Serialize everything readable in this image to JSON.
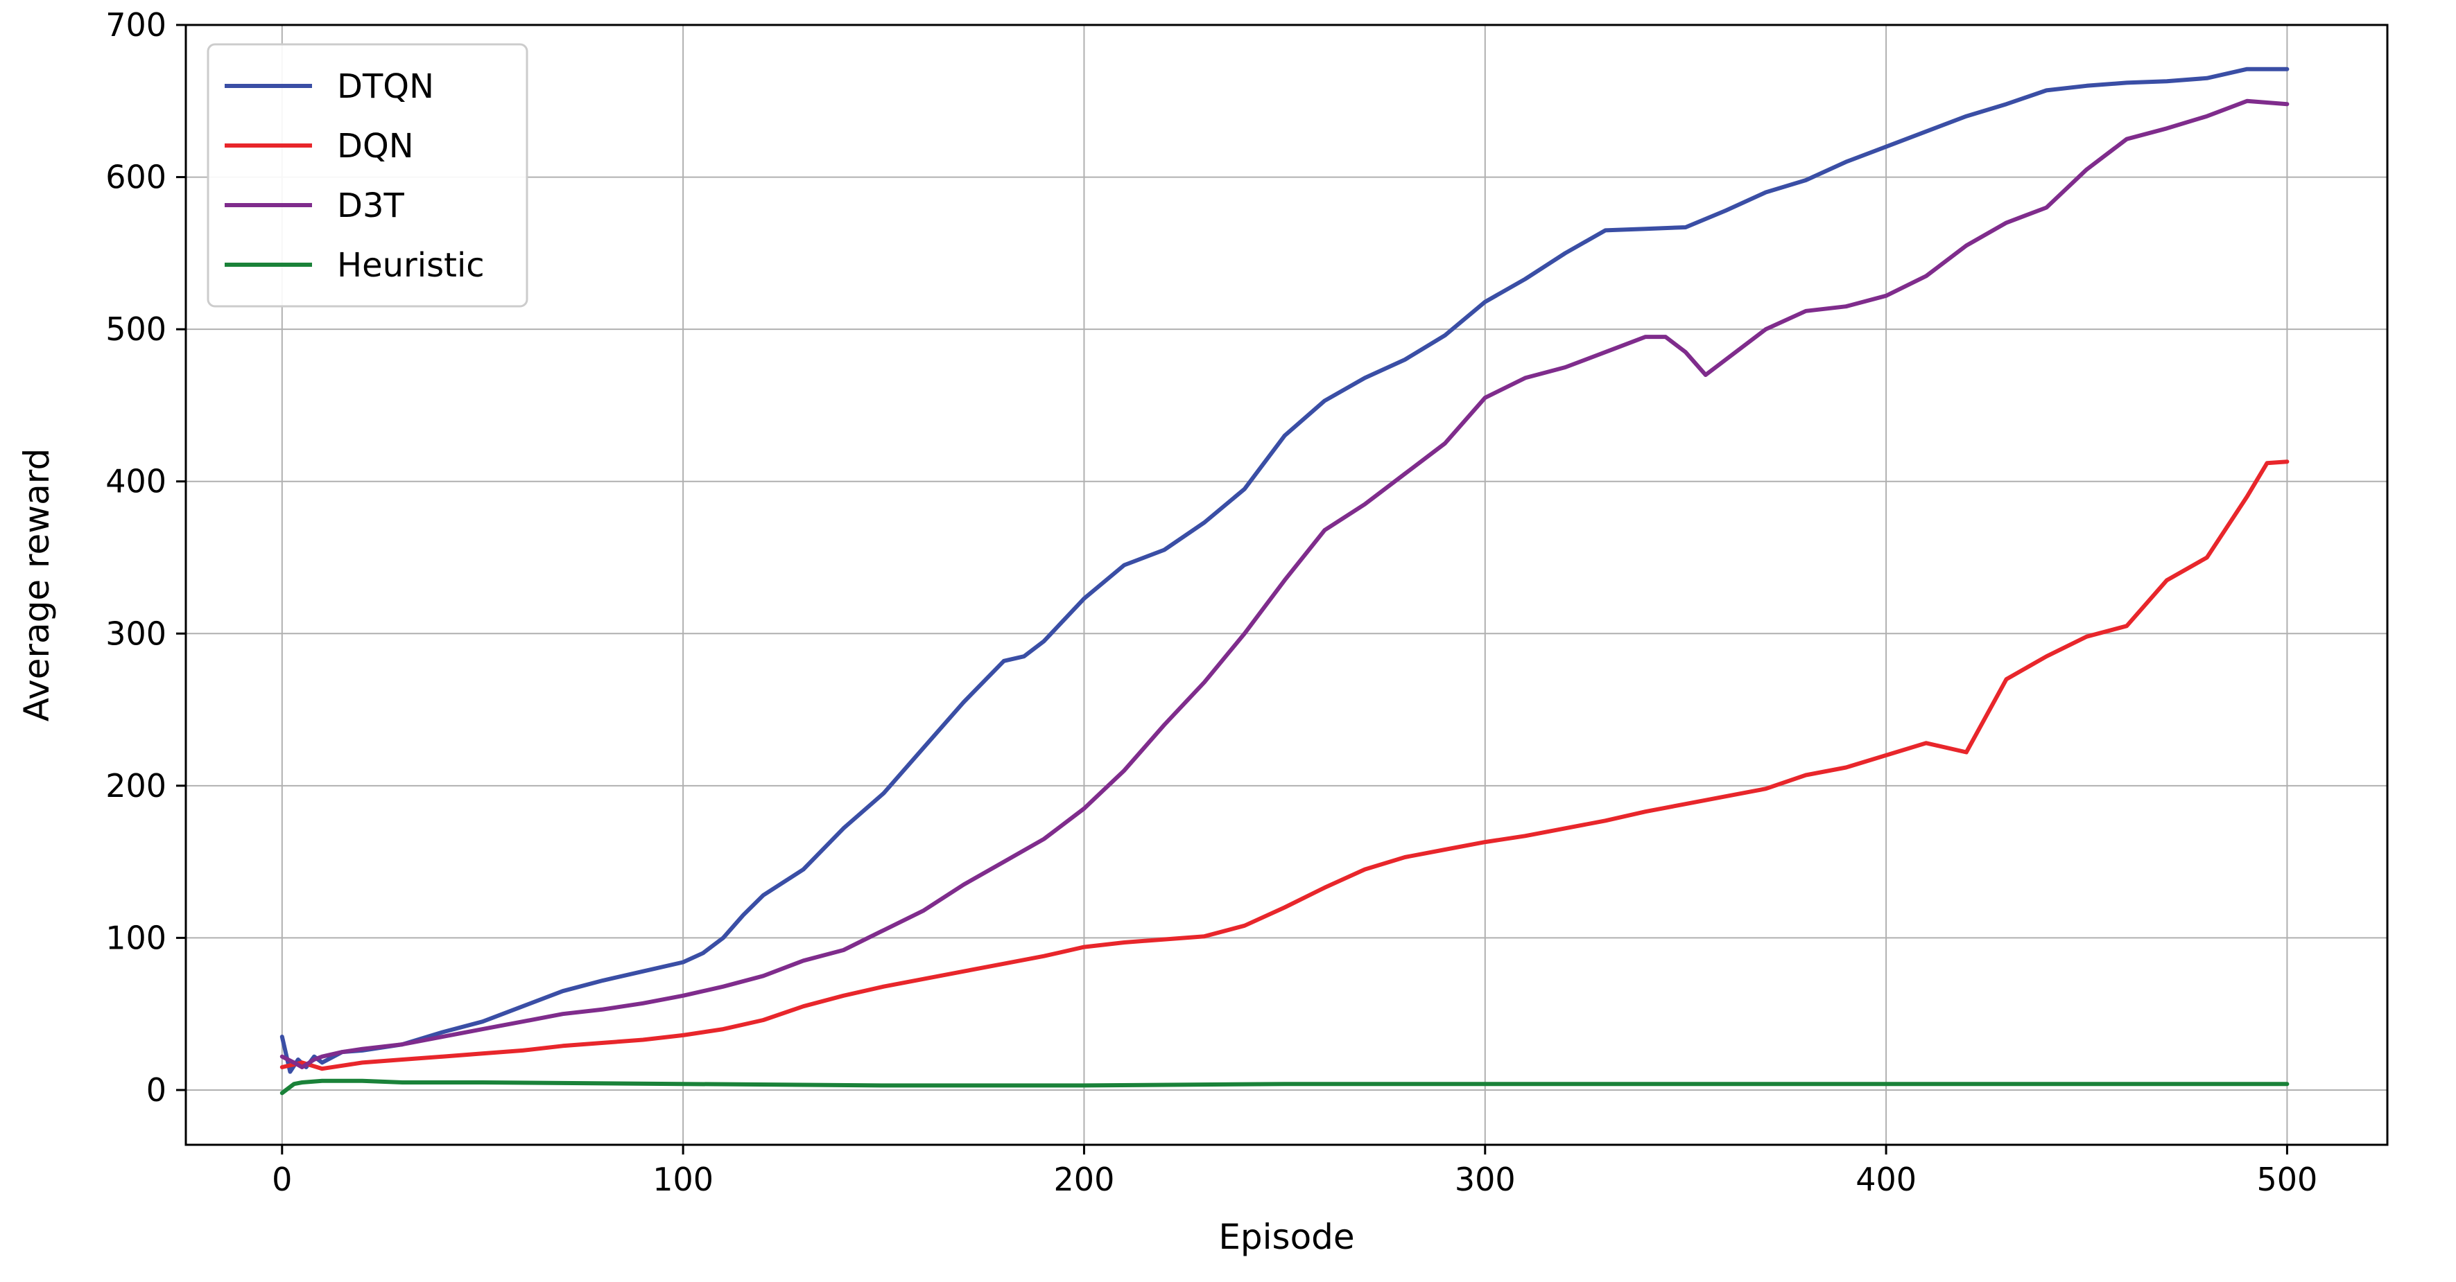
{
  "chart_data": {
    "type": "line",
    "title": "",
    "xlabel": "Episode",
    "ylabel": "Average reward",
    "xlim": [
      -24,
      525
    ],
    "ylim": [
      -36,
      700
    ],
    "xticks": [
      0,
      100,
      200,
      300,
      400,
      500
    ],
    "yticks": [
      0,
      100,
      200,
      300,
      400,
      500,
      600,
      700
    ],
    "xtick_labels": [
      "0",
      "100",
      "200",
      "300",
      "400",
      "500"
    ],
    "ytick_labels": [
      "0",
      "100",
      "200",
      "300",
      "400",
      "500",
      "600",
      "700"
    ],
    "grid": true,
    "legend_position": "top-left",
    "series": [
      {
        "name": "DTQN",
        "color": "#3a4ea5",
        "x": [
          0,
          2,
          4,
          6,
          8,
          10,
          15,
          20,
          25,
          30,
          40,
          50,
          60,
          70,
          80,
          90,
          100,
          105,
          110,
          115,
          120,
          130,
          140,
          150,
          160,
          170,
          180,
          185,
          190,
          200,
          210,
          220,
          230,
          240,
          250,
          260,
          270,
          280,
          290,
          300,
          310,
          320,
          330,
          340,
          350,
          360,
          370,
          380,
          390,
          400,
          410,
          420,
          430,
          440,
          450,
          460,
          470,
          480,
          490,
          500
        ],
        "y": [
          35,
          12,
          20,
          15,
          22,
          18,
          25,
          26,
          28,
          30,
          38,
          45,
          55,
          65,
          72,
          78,
          84,
          90,
          100,
          115,
          128,
          145,
          172,
          195,
          225,
          255,
          282,
          285,
          295,
          323,
          345,
          355,
          373,
          395,
          430,
          453,
          468,
          480,
          496,
          518,
          533,
          550,
          565,
          566,
          567,
          578,
          590,
          598,
          610,
          620,
          630,
          640,
          648,
          657,
          660,
          662,
          663,
          665,
          671,
          671
        ]
      },
      {
        "name": "DQN",
        "color": "#e8262b",
        "x": [
          0,
          5,
          10,
          15,
          20,
          30,
          40,
          50,
          60,
          70,
          80,
          90,
          100,
          110,
          120,
          130,
          140,
          150,
          160,
          170,
          180,
          190,
          200,
          210,
          220,
          230,
          240,
          250,
          260,
          270,
          280,
          290,
          300,
          310,
          320,
          330,
          340,
          350,
          360,
          370,
          380,
          390,
          400,
          410,
          420,
          430,
          440,
          450,
          460,
          470,
          480,
          490,
          495,
          500
        ],
        "y": [
          15,
          18,
          14,
          16,
          18,
          20,
          22,
          24,
          26,
          29,
          31,
          33,
          36,
          40,
          46,
          55,
          62,
          68,
          73,
          78,
          83,
          88,
          94,
          97,
          99,
          101,
          108,
          120,
          133,
          145,
          153,
          158,
          163,
          167,
          172,
          177,
          183,
          188,
          193,
          198,
          207,
          212,
          220,
          228,
          222,
          270,
          285,
          298,
          305,
          335,
          350,
          390,
          412,
          413
        ]
      },
      {
        "name": "D3T",
        "color": "#7f2c8c",
        "x": [
          0,
          3,
          5,
          8,
          10,
          15,
          20,
          30,
          40,
          50,
          60,
          70,
          80,
          90,
          100,
          110,
          120,
          130,
          140,
          150,
          160,
          170,
          180,
          190,
          200,
          210,
          220,
          230,
          240,
          250,
          260,
          270,
          280,
          290,
          300,
          310,
          320,
          330,
          340,
          345,
          350,
          355,
          360,
          370,
          380,
          390,
          400,
          410,
          420,
          430,
          440,
          450,
          460,
          470,
          480,
          490,
          500
        ],
        "y": [
          22,
          18,
          15,
          20,
          22,
          25,
          27,
          30,
          35,
          40,
          45,
          50,
          53,
          57,
          62,
          68,
          75,
          85,
          92,
          105,
          118,
          135,
          150,
          165,
          185,
          210,
          240,
          268,
          300,
          335,
          368,
          385,
          405,
          425,
          455,
          468,
          475,
          485,
          495,
          495,
          485,
          470,
          480,
          500,
          512,
          515,
          522,
          535,
          555,
          570,
          580,
          605,
          625,
          632,
          640,
          650,
          648
        ]
      },
      {
        "name": "Heuristic",
        "color": "#1a8239",
        "x": [
          0,
          3,
          5,
          10,
          20,
          30,
          50,
          100,
          150,
          200,
          250,
          300,
          350,
          400,
          450,
          500
        ],
        "y": [
          -2,
          4,
          5,
          6,
          6,
          5,
          5,
          4,
          3,
          3,
          4,
          4,
          4,
          4,
          4,
          4
        ]
      }
    ]
  }
}
